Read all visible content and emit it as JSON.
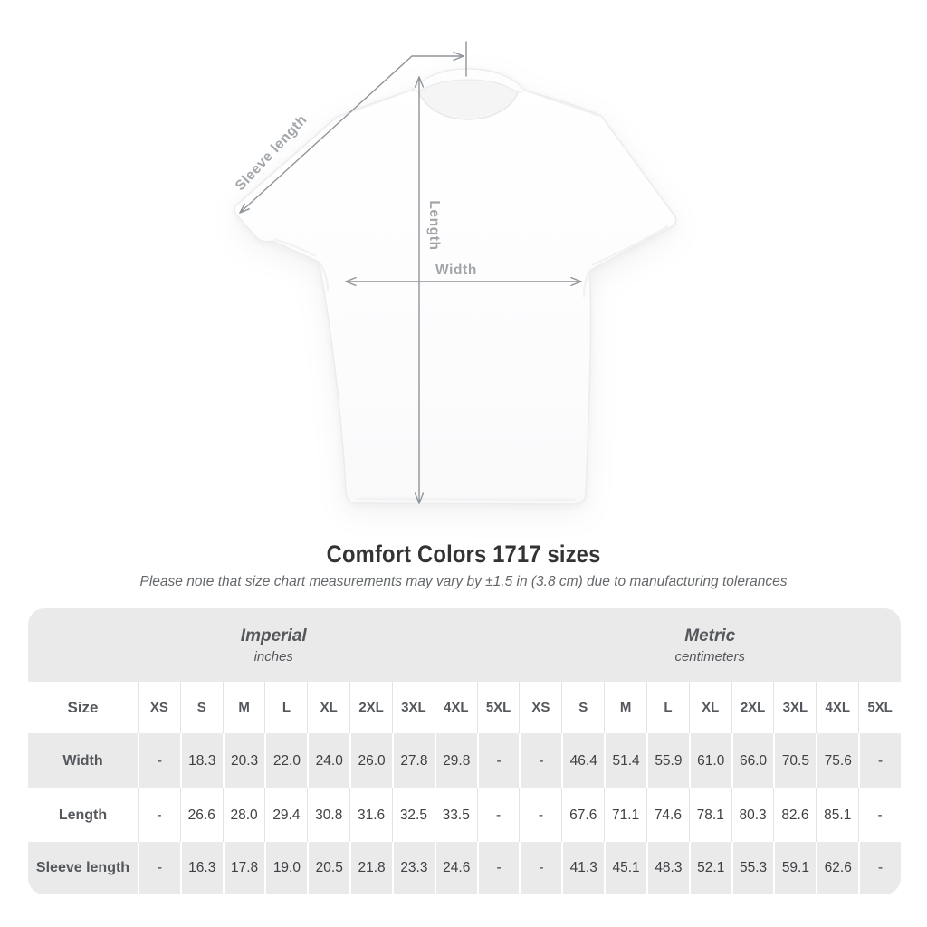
{
  "diagram": {
    "sleeve_label": "Sleeve length",
    "length_label": "Length",
    "width_label": "Width"
  },
  "title": "Comfort Colors 1717 sizes",
  "subtitle": "Please note that size chart measurements may vary by ±1.5 in (3.8 cm) due to manufacturing tolerances",
  "table": {
    "size_label": "Size",
    "sizes": [
      "XS",
      "S",
      "M",
      "L",
      "XL",
      "2XL",
      "3XL",
      "4XL",
      "5XL"
    ],
    "unit_groups": [
      {
        "name": "Imperial",
        "unit": "inches"
      },
      {
        "name": "Metric",
        "unit": "centimeters"
      }
    ],
    "rows": [
      {
        "label": "Width",
        "imperial": [
          "-",
          "18.3",
          "20.3",
          "22.0",
          "24.0",
          "26.0",
          "27.8",
          "29.8",
          "-"
        ],
        "metric": [
          "-",
          "46.4",
          "51.4",
          "55.9",
          "61.0",
          "66.0",
          "70.5",
          "75.6",
          "-"
        ]
      },
      {
        "label": "Length",
        "imperial": [
          "-",
          "26.6",
          "28.0",
          "29.4",
          "30.8",
          "31.6",
          "32.5",
          "33.5",
          "-"
        ],
        "metric": [
          "-",
          "67.6",
          "71.1",
          "74.6",
          "78.1",
          "80.3",
          "82.6",
          "85.1",
          "-"
        ]
      },
      {
        "label": "Sleeve length",
        "imperial": [
          "-",
          "16.3",
          "17.8",
          "19.0",
          "20.5",
          "21.8",
          "23.3",
          "24.6",
          "-"
        ],
        "metric": [
          "-",
          "41.3",
          "45.1",
          "48.3",
          "52.1",
          "55.3",
          "59.1",
          "62.6",
          "-"
        ]
      }
    ]
  },
  "colors": {
    "table_band": "#eaeaeb",
    "separator_light": "#e3e3e4",
    "header_text": "#54575b",
    "value_text": "#3e4043",
    "title_text": "#333333",
    "note_text": "#65686b",
    "measure_line": "#8f9499",
    "measure_label": "#a2a6aa"
  }
}
